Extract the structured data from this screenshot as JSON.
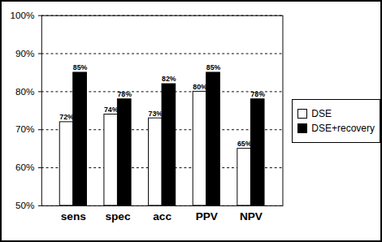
{
  "chart_data": {
    "type": "bar",
    "categories": [
      "sens",
      "spec",
      "acc",
      "PPV",
      "NPV"
    ],
    "series": [
      {
        "name": "DSE",
        "color": "#ffffff",
        "values": [
          72,
          74,
          73,
          80,
          65
        ],
        "value_labels": [
          "72%",
          "74%",
          "73%",
          "80%",
          "65%"
        ]
      },
      {
        "name": "DSE+recovery",
        "color": "#000000",
        "values": [
          85,
          78,
          82,
          85,
          78
        ],
        "value_labels": [
          "85%",
          "78%",
          "82%",
          "85%",
          "78%"
        ]
      }
    ],
    "ylim": [
      50,
      100
    ],
    "yticks": [
      {
        "value": 50,
        "label": "50%"
      },
      {
        "value": 60,
        "label": "60%"
      },
      {
        "value": 70,
        "label": "70%"
      },
      {
        "value": 80,
        "label": "80%"
      },
      {
        "value": 90,
        "label": "90%"
      },
      {
        "value": 100,
        "label": "100%"
      }
    ],
    "grid": true,
    "legend": "right",
    "data_labels": true
  }
}
